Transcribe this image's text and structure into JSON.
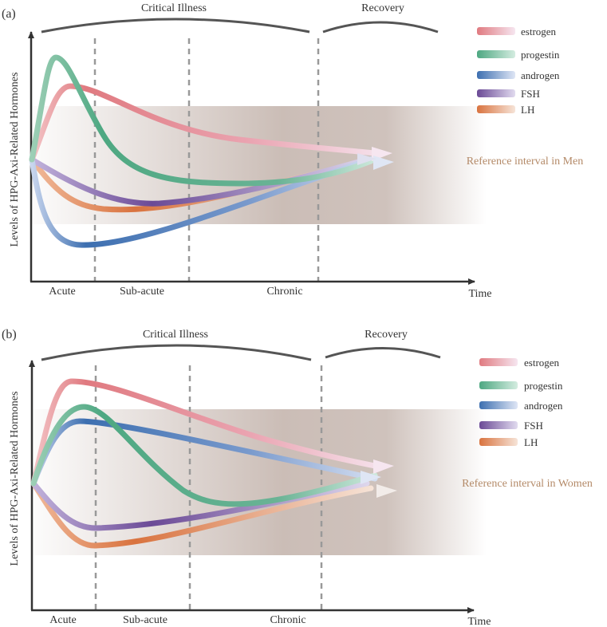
{
  "colors": {
    "estrogen": "#e07a80",
    "progestin": "#6ab395",
    "androgen": "#3d6fb0",
    "FSH": "#6b4a96",
    "LH": "#df7a45",
    "axis": "#333333",
    "band": "#a89186",
    "reference_text": "#b48a68",
    "divider": "#999999"
  },
  "panels": [
    {
      "label": "(a)",
      "y_axis_label": "Levels of HPG-Axi-Related Hormones",
      "x_axis_label": "Time",
      "brace_critical": "Critical Illness",
      "brace_recovery": "Recovery",
      "phases": [
        "Acute",
        "Sub-acute",
        "Chronic"
      ],
      "reference_label": "Reference interval in Men",
      "legend": [
        "estrogen",
        "progestin",
        "androgen",
        "FSH",
        "LH"
      ]
    },
    {
      "label": "(b)",
      "y_axis_label": "Levels of HPG-Axi-Related Hormones",
      "x_axis_label": "Time",
      "brace_critical": "Critical Illness",
      "brace_recovery": "Recovery",
      "phases": [
        "Acute",
        "Sub-acute",
        "Chronic"
      ],
      "reference_label": "Reference interval  in Women",
      "legend": [
        "estrogen",
        "progestin",
        "androgen",
        "FSH",
        "LH"
      ]
    }
  ]
}
